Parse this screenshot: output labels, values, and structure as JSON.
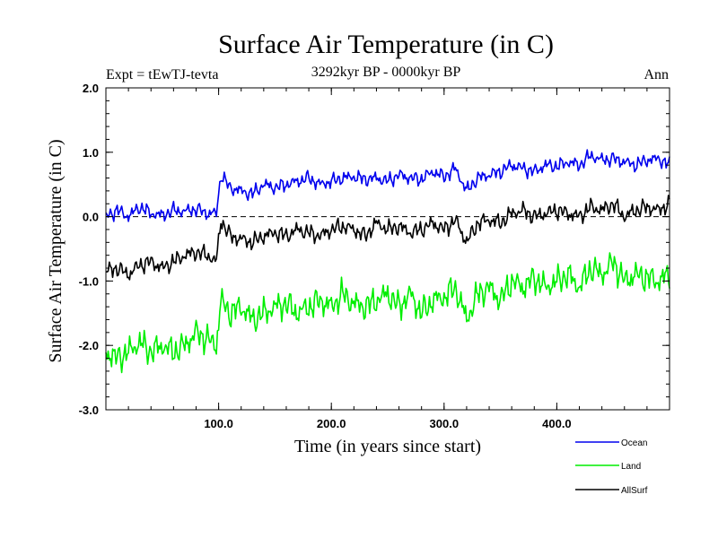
{
  "chart_data": {
    "type": "line",
    "title": "Surface Air Temperature (in C)",
    "subtitle_left": "Expt = tEwTJ-tevta",
    "subtitle_center": "3292kyr BP - 0000kyr BP",
    "subtitle_right": "Ann",
    "xlabel": "Time (in years since start)",
    "ylabel": "Surface Air Temperature (in C)",
    "xlim": [
      0,
      500
    ],
    "ylim": [
      -3.0,
      2.0
    ],
    "xticks": [
      100,
      200,
      300,
      400
    ],
    "xtick_labels": [
      "100.0",
      "200.0",
      "300.0",
      "400.0"
    ],
    "yticks": [
      -3.0,
      -2.0,
      -1.0,
      0.0,
      1.0,
      2.0
    ],
    "ytick_labels": [
      "-3.0",
      "-2.0",
      "-1.0",
      "0.0",
      "1.0",
      "2.0"
    ],
    "reference_line": {
      "y": 0.0,
      "style": "dashed"
    },
    "legend": [
      {
        "name": "Ocean",
        "color": "#0000ee"
      },
      {
        "name": "Land",
        "color": "#00ee00"
      },
      {
        "name": "AllSurf",
        "color": "#000000"
      }
    ],
    "series": [
      {
        "name": "Ocean",
        "color": "#0000ee",
        "x": [
          0,
          10,
          20,
          30,
          40,
          50,
          60,
          70,
          80,
          90,
          98,
          102,
          110,
          120,
          130,
          140,
          150,
          160,
          170,
          180,
          190,
          200,
          210,
          220,
          230,
          240,
          250,
          260,
          270,
          280,
          290,
          300,
          310,
          320,
          330,
          340,
          350,
          360,
          370,
          380,
          390,
          400,
          410,
          420,
          430,
          440,
          450,
          460,
          470,
          480,
          490,
          500
        ],
        "values": [
          0.0,
          0.1,
          0.0,
          0.15,
          0.05,
          0.02,
          0.1,
          0.08,
          0.12,
          0.05,
          0.05,
          0.65,
          0.45,
          0.4,
          0.35,
          0.5,
          0.45,
          0.5,
          0.55,
          0.6,
          0.5,
          0.55,
          0.6,
          0.62,
          0.58,
          0.6,
          0.55,
          0.65,
          0.6,
          0.58,
          0.7,
          0.62,
          0.75,
          0.4,
          0.6,
          0.65,
          0.7,
          0.8,
          0.75,
          0.7,
          0.8,
          0.78,
          0.85,
          0.8,
          0.95,
          0.88,
          0.9,
          0.85,
          0.8,
          0.88,
          0.9,
          0.8
        ]
      },
      {
        "name": "Land",
        "color": "#00ee00",
        "x": [
          0,
          10,
          20,
          30,
          40,
          50,
          60,
          70,
          80,
          90,
          98,
          102,
          110,
          120,
          130,
          140,
          150,
          160,
          170,
          180,
          190,
          200,
          210,
          220,
          230,
          240,
          250,
          260,
          270,
          280,
          290,
          300,
          310,
          320,
          330,
          340,
          350,
          360,
          370,
          380,
          390,
          400,
          410,
          420,
          430,
          440,
          450,
          460,
          470,
          480,
          490,
          500
        ],
        "values": [
          -2.1,
          -2.2,
          -2.1,
          -1.95,
          -2.1,
          -2.0,
          -2.1,
          -2.0,
          -1.8,
          -1.9,
          -2.0,
          -1.3,
          -1.5,
          -1.4,
          -1.6,
          -1.5,
          -1.4,
          -1.35,
          -1.5,
          -1.4,
          -1.3,
          -1.4,
          -1.2,
          -1.35,
          -1.4,
          -1.3,
          -1.2,
          -1.4,
          -1.2,
          -1.5,
          -1.3,
          -1.25,
          -1.1,
          -1.6,
          -1.2,
          -1.1,
          -1.3,
          -1.0,
          -1.1,
          -0.95,
          -1.1,
          -1.0,
          -0.9,
          -1.1,
          -0.8,
          -0.9,
          -0.7,
          -1.0,
          -0.9,
          -0.95,
          -1.0,
          -0.9
        ]
      },
      {
        "name": "AllSurf",
        "color": "#000000",
        "x": [
          0,
          10,
          20,
          30,
          40,
          50,
          60,
          70,
          80,
          90,
          98,
          102,
          110,
          120,
          130,
          140,
          150,
          160,
          170,
          180,
          190,
          200,
          210,
          220,
          230,
          240,
          250,
          260,
          270,
          280,
          290,
          300,
          310,
          320,
          330,
          340,
          350,
          360,
          370,
          380,
          390,
          400,
          410,
          420,
          430,
          440,
          450,
          460,
          470,
          480,
          490,
          500
        ],
        "values": [
          -0.85,
          -0.8,
          -0.9,
          -0.75,
          -0.7,
          -0.8,
          -0.7,
          -0.6,
          -0.55,
          -0.6,
          -0.7,
          -0.05,
          -0.3,
          -0.35,
          -0.4,
          -0.3,
          -0.25,
          -0.3,
          -0.2,
          -0.25,
          -0.3,
          -0.2,
          -0.15,
          -0.2,
          -0.3,
          -0.1,
          -0.2,
          -0.15,
          -0.25,
          -0.2,
          -0.1,
          -0.2,
          -0.05,
          -0.4,
          -0.1,
          -0.05,
          -0.1,
          0.05,
          0.1,
          0.0,
          0.05,
          0.1,
          0.05,
          0.0,
          0.15,
          0.1,
          0.2,
          0.0,
          0.1,
          0.15,
          0.1,
          0.2
        ]
      }
    ]
  }
}
